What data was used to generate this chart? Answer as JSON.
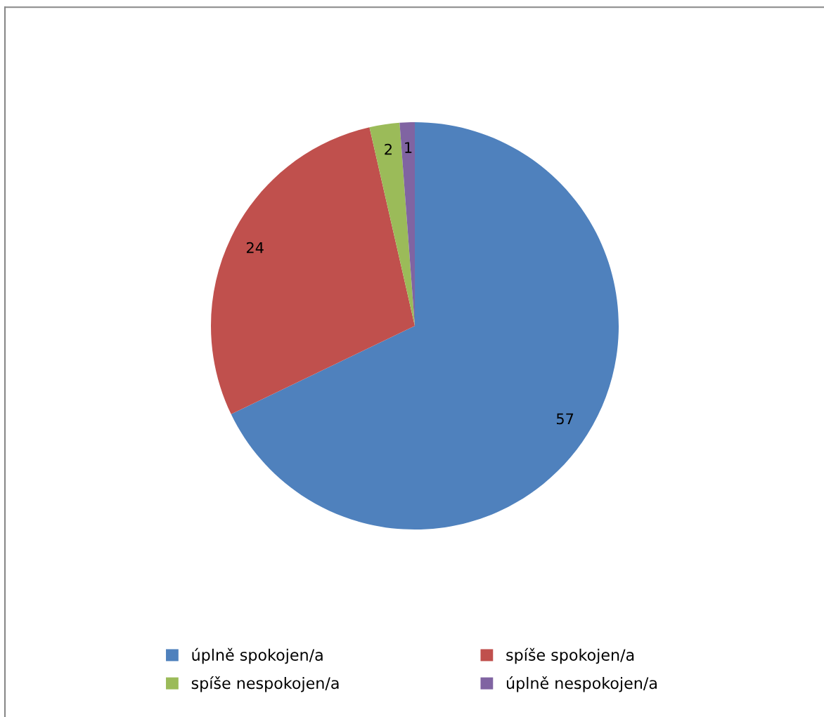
{
  "chart_data": {
    "type": "pie",
    "categories": [
      "úplně spokojen/a",
      "spíše spokojen/a",
      "spíše nespokojen/a",
      "úplně nespokojen/a"
    ],
    "values": [
      57,
      24,
      2,
      1
    ],
    "colors": [
      "#4f81bd",
      "#c0504d",
      "#9bbb59",
      "#8064a2"
    ],
    "data_labels": true,
    "legend": "bottom"
  }
}
